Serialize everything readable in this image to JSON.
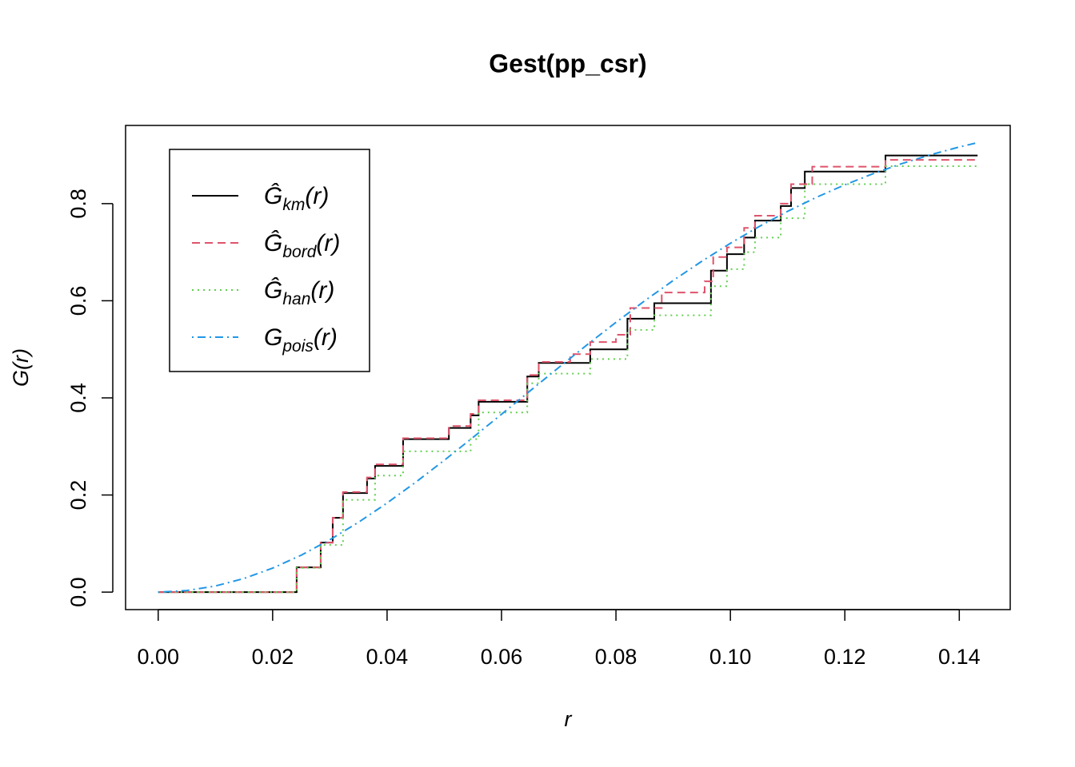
{
  "chart_data": {
    "type": "line",
    "title": "Gest(pp_csr)",
    "x_label": "r",
    "y_label": {
      "main": "G",
      "tail": "(r)"
    },
    "xlim": [
      -0.0057,
      0.1489
    ],
    "ylim": [
      -0.036,
      0.961
    ],
    "xticks": [
      {
        "value": 0,
        "label": "0.00"
      },
      0.02,
      0.04,
      0.06,
      0.08,
      {
        "value": 0.1,
        "label": "0.10"
      },
      0.12,
      0.14
    ],
    "yticks": [
      {
        "value": 0,
        "label": "0.0"
      },
      0.2,
      0.4,
      0.6,
      0.8
    ],
    "legend": "top-left",
    "series": [
      {
        "label_main": "Ĝ",
        "label_sub": "km",
        "label_tail": "(r)",
        "color": "#000000",
        "dash": "solid",
        "step": true,
        "x": [
          0,
          0.0242,
          0.0284,
          0.0305,
          0.0323,
          0.0365,
          0.0379,
          0.0428,
          0.0508,
          0.0546,
          0.056,
          0.0645,
          0.0665,
          0.0755,
          0.082,
          0.0867,
          0.0966,
          0.0994,
          0.1024,
          0.1043,
          0.1088,
          0.1106,
          0.113,
          0.1271,
          0.1432
        ],
        "values": [
          0,
          0.051,
          0.102,
          0.153,
          0.204,
          0.234,
          0.26,
          0.315,
          0.338,
          0.364,
          0.392,
          0.444,
          0.472,
          0.5,
          0.563,
          0.595,
          0.662,
          0.696,
          0.73,
          0.765,
          0.795,
          0.832,
          0.866,
          0.899,
          0.899
        ]
      },
      {
        "label_main": "Ĝ",
        "label_sub": "bord",
        "label_tail": "(r)",
        "color": "#DF536B",
        "dash": "dashed",
        "step": true,
        "x": [
          0,
          0.0242,
          0.0284,
          0.0305,
          0.0323,
          0.0365,
          0.0379,
          0.0428,
          0.0508,
          0.0546,
          0.056,
          0.0645,
          0.0665,
          0.072,
          0.0755,
          0.08,
          0.0825,
          0.088,
          0.0955,
          0.097,
          0.0994,
          0.1024,
          0.1043,
          0.1088,
          0.1106,
          0.1143,
          0.1271,
          0.1432
        ],
        "values": [
          0,
          0.051,
          0.102,
          0.153,
          0.206,
          0.236,
          0.263,
          0.317,
          0.342,
          0.367,
          0.395,
          0.447,
          0.474,
          0.49,
          0.515,
          0.53,
          0.585,
          0.617,
          0.64,
          0.69,
          0.71,
          0.75,
          0.775,
          0.8,
          0.84,
          0.876,
          0.89,
          0.89
        ]
      },
      {
        "label_main": "Ĝ",
        "label_sub": "han",
        "label_tail": "(r)",
        "color": "#61D04F",
        "dash": "dotted",
        "step": true,
        "x": [
          0,
          0.0242,
          0.0284,
          0.0323,
          0.0379,
          0.0428,
          0.0546,
          0.056,
          0.0645,
          0.0665,
          0.0755,
          0.082,
          0.0867,
          0.0966,
          0.0994,
          0.1024,
          0.1043,
          0.1088,
          0.113,
          0.1271,
          0.1432
        ],
        "values": [
          0,
          0.05,
          0.097,
          0.19,
          0.24,
          0.29,
          0.315,
          0.37,
          0.43,
          0.45,
          0.48,
          0.54,
          0.57,
          0.63,
          0.665,
          0.7,
          0.73,
          0.77,
          0.84,
          0.877,
          0.877
        ]
      },
      {
        "label_main": "G",
        "label_sub": "pois",
        "label_tail": "(r)",
        "color": "#2297E6",
        "dash": "dotdash",
        "step": false,
        "x": [
          0,
          0.005,
          0.01,
          0.015,
          0.02,
          0.025,
          0.03,
          0.035,
          0.04,
          0.045,
          0.05,
          0.055,
          0.06,
          0.065,
          0.07,
          0.075,
          0.08,
          0.085,
          0.09,
          0.095,
          0.1,
          0.105,
          0.11,
          0.115,
          0.12,
          0.125,
          0.13,
          0.135,
          0.14,
          0.143
        ],
        "values": [
          0,
          0.0032,
          0.0126,
          0.0281,
          0.0494,
          0.0761,
          0.1078,
          0.1438,
          0.1835,
          0.2263,
          0.2715,
          0.3184,
          0.3663,
          0.4145,
          0.4625,
          0.5097,
          0.5555,
          0.5997,
          0.6417,
          0.6813,
          0.7183,
          0.7527,
          0.7841,
          0.8128,
          0.8387,
          0.8619,
          0.8825,
          0.9007,
          0.9166,
          0.925
        ]
      }
    ]
  }
}
